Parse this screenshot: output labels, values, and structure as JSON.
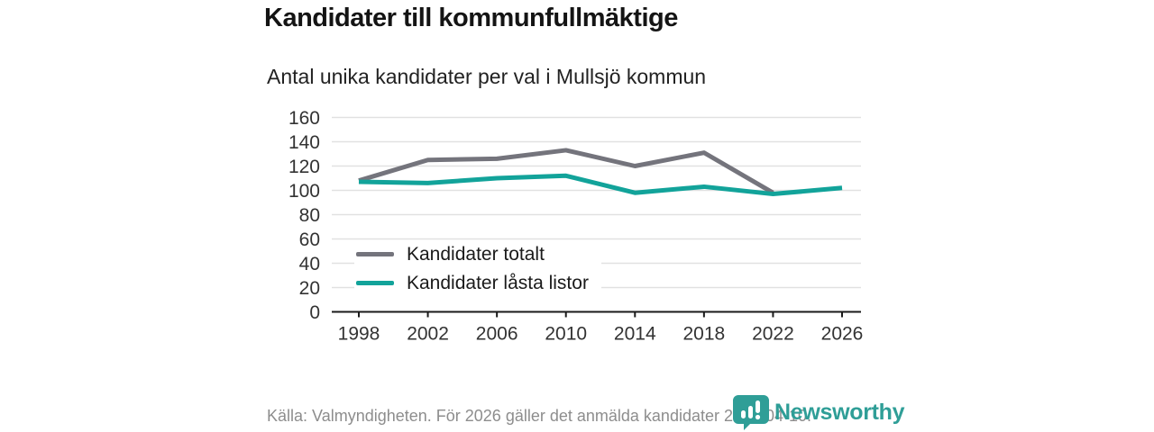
{
  "page": {
    "background": "#ffffff"
  },
  "header": {
    "title": "Kandidater till kommunfullmäktige",
    "subtitle": "Antal unika kandidater per val i Mullsjö kommun"
  },
  "footer": {
    "source": "Källa: Valmyndigheten. För 2026 gäller det anmälda kandidater 2026-04-10."
  },
  "branding": {
    "name": "Newsworthy",
    "color": "#2f9e97",
    "logo_icon": "bar-chart-speech-bubble-icon"
  },
  "chart_data": {
    "type": "line",
    "title": "Kandidater till kommunfullmäktige",
    "subtitle": "Antal unika kandidater per val i Mullsjö kommun",
    "categories": [
      "1998",
      "2002",
      "2006",
      "2010",
      "2014",
      "2018",
      "2022",
      "2026"
    ],
    "series": [
      {
        "name": "Kandidater totalt",
        "color": "#74747c",
        "values": [
          108,
          125,
          126,
          133,
          120,
          131,
          98,
          null
        ]
      },
      {
        "name": "Kandidater låsta listor",
        "color": "#12a39a",
        "values": [
          107,
          106,
          110,
          112,
          98,
          103,
          97,
          102
        ]
      }
    ],
    "ylim": [
      0,
      160
    ],
    "yticks": [
      0,
      20,
      40,
      60,
      80,
      100,
      120,
      140,
      160
    ],
    "grid": "horizontal",
    "legend_position": "inside-bottom-left",
    "axis_color": "#1a1a1a",
    "grid_color": "#e1e1e1",
    "tick_label_color": "#333333",
    "line_width": 5
  }
}
